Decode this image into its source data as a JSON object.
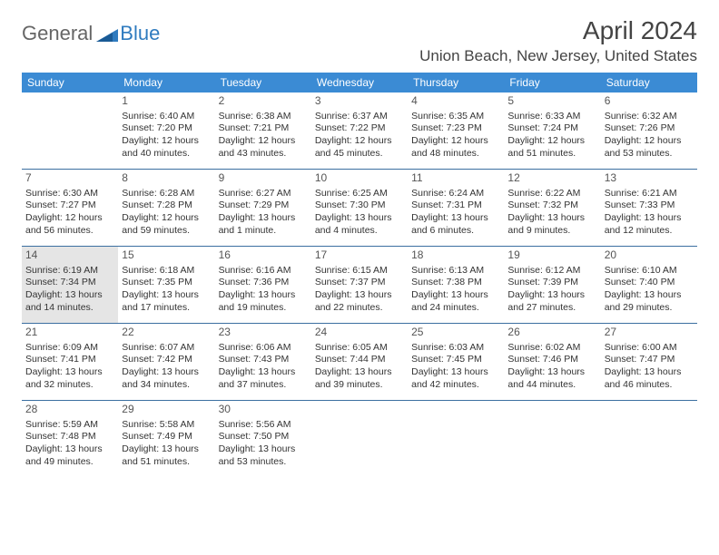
{
  "logo": {
    "word1": "General",
    "word2": "Blue"
  },
  "title": "April 2024",
  "location": "Union Beach, New Jersey, United States",
  "colors": {
    "header_bg": "#3b8bd4",
    "header_text": "#ffffff",
    "week_border": "#3b6fa0",
    "highlight_bg": "#e5e5e5",
    "text": "#333333",
    "logo_accent": "#2f7bbf"
  },
  "dayNames": [
    "Sunday",
    "Monday",
    "Tuesday",
    "Wednesday",
    "Thursday",
    "Friday",
    "Saturday"
  ],
  "weeks": [
    [
      {
        "n": "",
        "sunrise": "",
        "sunset": "",
        "daylight": ""
      },
      {
        "n": "1",
        "sunrise": "Sunrise: 6:40 AM",
        "sunset": "Sunset: 7:20 PM",
        "daylight": "Daylight: 12 hours and 40 minutes."
      },
      {
        "n": "2",
        "sunrise": "Sunrise: 6:38 AM",
        "sunset": "Sunset: 7:21 PM",
        "daylight": "Daylight: 12 hours and 43 minutes."
      },
      {
        "n": "3",
        "sunrise": "Sunrise: 6:37 AM",
        "sunset": "Sunset: 7:22 PM",
        "daylight": "Daylight: 12 hours and 45 minutes."
      },
      {
        "n": "4",
        "sunrise": "Sunrise: 6:35 AM",
        "sunset": "Sunset: 7:23 PM",
        "daylight": "Daylight: 12 hours and 48 minutes."
      },
      {
        "n": "5",
        "sunrise": "Sunrise: 6:33 AM",
        "sunset": "Sunset: 7:24 PM",
        "daylight": "Daylight: 12 hours and 51 minutes."
      },
      {
        "n": "6",
        "sunrise": "Sunrise: 6:32 AM",
        "sunset": "Sunset: 7:26 PM",
        "daylight": "Daylight: 12 hours and 53 minutes."
      }
    ],
    [
      {
        "n": "7",
        "sunrise": "Sunrise: 6:30 AM",
        "sunset": "Sunset: 7:27 PM",
        "daylight": "Daylight: 12 hours and 56 minutes."
      },
      {
        "n": "8",
        "sunrise": "Sunrise: 6:28 AM",
        "sunset": "Sunset: 7:28 PM",
        "daylight": "Daylight: 12 hours and 59 minutes."
      },
      {
        "n": "9",
        "sunrise": "Sunrise: 6:27 AM",
        "sunset": "Sunset: 7:29 PM",
        "daylight": "Daylight: 13 hours and 1 minute."
      },
      {
        "n": "10",
        "sunrise": "Sunrise: 6:25 AM",
        "sunset": "Sunset: 7:30 PM",
        "daylight": "Daylight: 13 hours and 4 minutes."
      },
      {
        "n": "11",
        "sunrise": "Sunrise: 6:24 AM",
        "sunset": "Sunset: 7:31 PM",
        "daylight": "Daylight: 13 hours and 6 minutes."
      },
      {
        "n": "12",
        "sunrise": "Sunrise: 6:22 AM",
        "sunset": "Sunset: 7:32 PM",
        "daylight": "Daylight: 13 hours and 9 minutes."
      },
      {
        "n": "13",
        "sunrise": "Sunrise: 6:21 AM",
        "sunset": "Sunset: 7:33 PM",
        "daylight": "Daylight: 13 hours and 12 minutes."
      }
    ],
    [
      {
        "n": "14",
        "today": true,
        "sunrise": "Sunrise: 6:19 AM",
        "sunset": "Sunset: 7:34 PM",
        "daylight": "Daylight: 13 hours and 14 minutes."
      },
      {
        "n": "15",
        "sunrise": "Sunrise: 6:18 AM",
        "sunset": "Sunset: 7:35 PM",
        "daylight": "Daylight: 13 hours and 17 minutes."
      },
      {
        "n": "16",
        "sunrise": "Sunrise: 6:16 AM",
        "sunset": "Sunset: 7:36 PM",
        "daylight": "Daylight: 13 hours and 19 minutes."
      },
      {
        "n": "17",
        "sunrise": "Sunrise: 6:15 AM",
        "sunset": "Sunset: 7:37 PM",
        "daylight": "Daylight: 13 hours and 22 minutes."
      },
      {
        "n": "18",
        "sunrise": "Sunrise: 6:13 AM",
        "sunset": "Sunset: 7:38 PM",
        "daylight": "Daylight: 13 hours and 24 minutes."
      },
      {
        "n": "19",
        "sunrise": "Sunrise: 6:12 AM",
        "sunset": "Sunset: 7:39 PM",
        "daylight": "Daylight: 13 hours and 27 minutes."
      },
      {
        "n": "20",
        "sunrise": "Sunrise: 6:10 AM",
        "sunset": "Sunset: 7:40 PM",
        "daylight": "Daylight: 13 hours and 29 minutes."
      }
    ],
    [
      {
        "n": "21",
        "sunrise": "Sunrise: 6:09 AM",
        "sunset": "Sunset: 7:41 PM",
        "daylight": "Daylight: 13 hours and 32 minutes."
      },
      {
        "n": "22",
        "sunrise": "Sunrise: 6:07 AM",
        "sunset": "Sunset: 7:42 PM",
        "daylight": "Daylight: 13 hours and 34 minutes."
      },
      {
        "n": "23",
        "sunrise": "Sunrise: 6:06 AM",
        "sunset": "Sunset: 7:43 PM",
        "daylight": "Daylight: 13 hours and 37 minutes."
      },
      {
        "n": "24",
        "sunrise": "Sunrise: 6:05 AM",
        "sunset": "Sunset: 7:44 PM",
        "daylight": "Daylight: 13 hours and 39 minutes."
      },
      {
        "n": "25",
        "sunrise": "Sunrise: 6:03 AM",
        "sunset": "Sunset: 7:45 PM",
        "daylight": "Daylight: 13 hours and 42 minutes."
      },
      {
        "n": "26",
        "sunrise": "Sunrise: 6:02 AM",
        "sunset": "Sunset: 7:46 PM",
        "daylight": "Daylight: 13 hours and 44 minutes."
      },
      {
        "n": "27",
        "sunrise": "Sunrise: 6:00 AM",
        "sunset": "Sunset: 7:47 PM",
        "daylight": "Daylight: 13 hours and 46 minutes."
      }
    ],
    [
      {
        "n": "28",
        "sunrise": "Sunrise: 5:59 AM",
        "sunset": "Sunset: 7:48 PM",
        "daylight": "Daylight: 13 hours and 49 minutes."
      },
      {
        "n": "29",
        "sunrise": "Sunrise: 5:58 AM",
        "sunset": "Sunset: 7:49 PM",
        "daylight": "Daylight: 13 hours and 51 minutes."
      },
      {
        "n": "30",
        "sunrise": "Sunrise: 5:56 AM",
        "sunset": "Sunset: 7:50 PM",
        "daylight": "Daylight: 13 hours and 53 minutes."
      },
      {
        "n": "",
        "sunrise": "",
        "sunset": "",
        "daylight": ""
      },
      {
        "n": "",
        "sunrise": "",
        "sunset": "",
        "daylight": ""
      },
      {
        "n": "",
        "sunrise": "",
        "sunset": "",
        "daylight": ""
      },
      {
        "n": "",
        "sunrise": "",
        "sunset": "",
        "daylight": ""
      }
    ]
  ]
}
